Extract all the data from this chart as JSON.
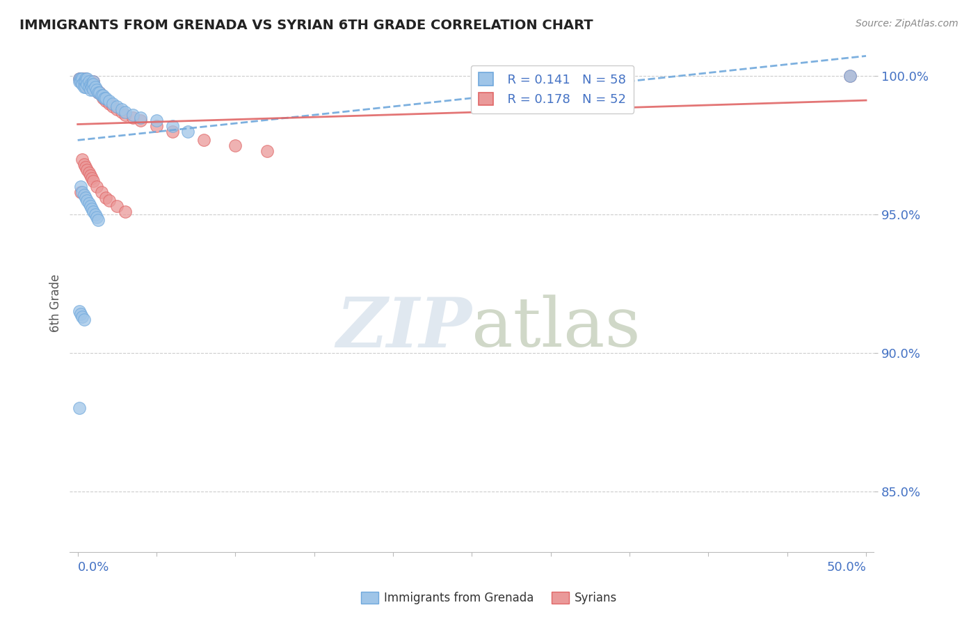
{
  "title": "IMMIGRANTS FROM GRENADA VS SYRIAN 6TH GRADE CORRELATION CHART",
  "source": "Source: ZipAtlas.com",
  "ylabel": "6th Grade",
  "ylim": [
    0.828,
    1.008
  ],
  "xlim": [
    -0.005,
    0.505
  ],
  "yticks": [
    0.85,
    0.9,
    0.95,
    1.0
  ],
  "ytick_labels": [
    "85.0%",
    "90.0%",
    "95.0%",
    "100.0%"
  ],
  "xticks": [
    0.0,
    0.05,
    0.1,
    0.15,
    0.2,
    0.25,
    0.3,
    0.35,
    0.4,
    0.45,
    0.5
  ],
  "legend_R1": "R = 0.141",
  "legend_N1": "N = 58",
  "legend_R2": "R = 0.178",
  "legend_N2": "N = 52",
  "blue_color": "#9fc5e8",
  "blue_edge": "#6fa8dc",
  "pink_color": "#ea9999",
  "pink_edge": "#e06666",
  "trend_blue_color": "#6fa8dc",
  "trend_pink_color": "#e06666",
  "watermark": "ZIPatlas",
  "grenada_x": [
    0.001,
    0.001,
    0.002,
    0.002,
    0.003,
    0.003,
    0.004,
    0.004,
    0.005,
    0.005,
    0.005,
    0.006,
    0.006,
    0.007,
    0.007,
    0.008,
    0.008,
    0.009,
    0.009,
    0.01,
    0.01,
    0.01,
    0.011,
    0.012,
    0.013,
    0.014,
    0.015,
    0.016,
    0.017,
    0.018,
    0.02,
    0.022,
    0.025,
    0.028,
    0.03,
    0.035,
    0.04,
    0.05,
    0.06,
    0.07,
    0.002,
    0.003,
    0.004,
    0.005,
    0.006,
    0.007,
    0.008,
    0.009,
    0.01,
    0.011,
    0.012,
    0.013,
    0.001,
    0.002,
    0.003,
    0.004,
    0.49,
    0.001
  ],
  "grenada_y": [
    0.999,
    0.998,
    0.999,
    0.998,
    0.999,
    0.997,
    0.998,
    0.996,
    0.999,
    0.998,
    0.996,
    0.999,
    0.997,
    0.998,
    0.996,
    0.997,
    0.995,
    0.997,
    0.996,
    0.998,
    0.997,
    0.995,
    0.996,
    0.995,
    0.994,
    0.994,
    0.993,
    0.993,
    0.992,
    0.992,
    0.991,
    0.99,
    0.989,
    0.988,
    0.987,
    0.986,
    0.985,
    0.984,
    0.982,
    0.98,
    0.96,
    0.958,
    0.957,
    0.956,
    0.955,
    0.954,
    0.953,
    0.952,
    0.951,
    0.95,
    0.949,
    0.948,
    0.915,
    0.914,
    0.913,
    0.912,
    1.0,
    0.88
  ],
  "syrian_x": [
    0.001,
    0.002,
    0.002,
    0.003,
    0.004,
    0.004,
    0.005,
    0.005,
    0.006,
    0.006,
    0.007,
    0.008,
    0.008,
    0.009,
    0.01,
    0.01,
    0.011,
    0.012,
    0.013,
    0.014,
    0.015,
    0.016,
    0.017,
    0.018,
    0.02,
    0.022,
    0.025,
    0.028,
    0.03,
    0.035,
    0.04,
    0.05,
    0.06,
    0.08,
    0.1,
    0.12,
    0.003,
    0.004,
    0.005,
    0.006,
    0.007,
    0.008,
    0.009,
    0.01,
    0.012,
    0.015,
    0.018,
    0.02,
    0.025,
    0.03,
    0.49,
    0.002
  ],
  "syrian_y": [
    0.999,
    0.999,
    0.998,
    0.999,
    0.998,
    0.997,
    0.999,
    0.997,
    0.998,
    0.996,
    0.997,
    0.998,
    0.996,
    0.997,
    0.998,
    0.996,
    0.995,
    0.995,
    0.994,
    0.994,
    0.993,
    0.992,
    0.992,
    0.991,
    0.99,
    0.989,
    0.988,
    0.987,
    0.986,
    0.985,
    0.984,
    0.982,
    0.98,
    0.977,
    0.975,
    0.973,
    0.97,
    0.968,
    0.967,
    0.966,
    0.965,
    0.964,
    0.963,
    0.962,
    0.96,
    0.958,
    0.956,
    0.955,
    0.953,
    0.951,
    1.0,
    0.958
  ]
}
